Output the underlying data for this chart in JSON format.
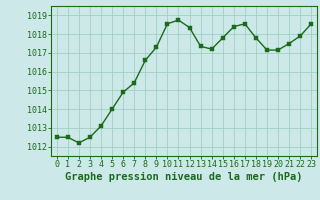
{
  "x": [
    0,
    1,
    2,
    3,
    4,
    5,
    6,
    7,
    8,
    9,
    10,
    11,
    12,
    13,
    14,
    15,
    16,
    17,
    18,
    19,
    20,
    21,
    22,
    23
  ],
  "y": [
    1012.5,
    1012.5,
    1012.2,
    1012.5,
    1013.1,
    1014.0,
    1014.9,
    1015.4,
    1016.6,
    1017.3,
    1018.55,
    1018.75,
    1018.35,
    1017.35,
    1017.2,
    1017.8,
    1018.4,
    1018.55,
    1017.8,
    1017.15,
    1017.15,
    1017.5,
    1017.9,
    1018.55
  ],
  "line_color": "#1a6b1a",
  "marker_color": "#1a6b1a",
  "bg_color": "#cce8e8",
  "grid_color": "#99ccbb",
  "xlabel": "Graphe pression niveau de la mer (hPa)",
  "xlim": [
    -0.5,
    23.5
  ],
  "ylim": [
    1011.5,
    1019.5
  ],
  "yticks": [
    1012,
    1013,
    1014,
    1015,
    1016,
    1017,
    1018,
    1019
  ],
  "xticks": [
    0,
    1,
    2,
    3,
    4,
    5,
    6,
    7,
    8,
    9,
    10,
    11,
    12,
    13,
    14,
    15,
    16,
    17,
    18,
    19,
    20,
    21,
    22,
    23
  ],
  "xlabel_fontsize": 7.5,
  "tick_fontsize": 6,
  "line_width": 1.0,
  "marker_size": 2.5
}
